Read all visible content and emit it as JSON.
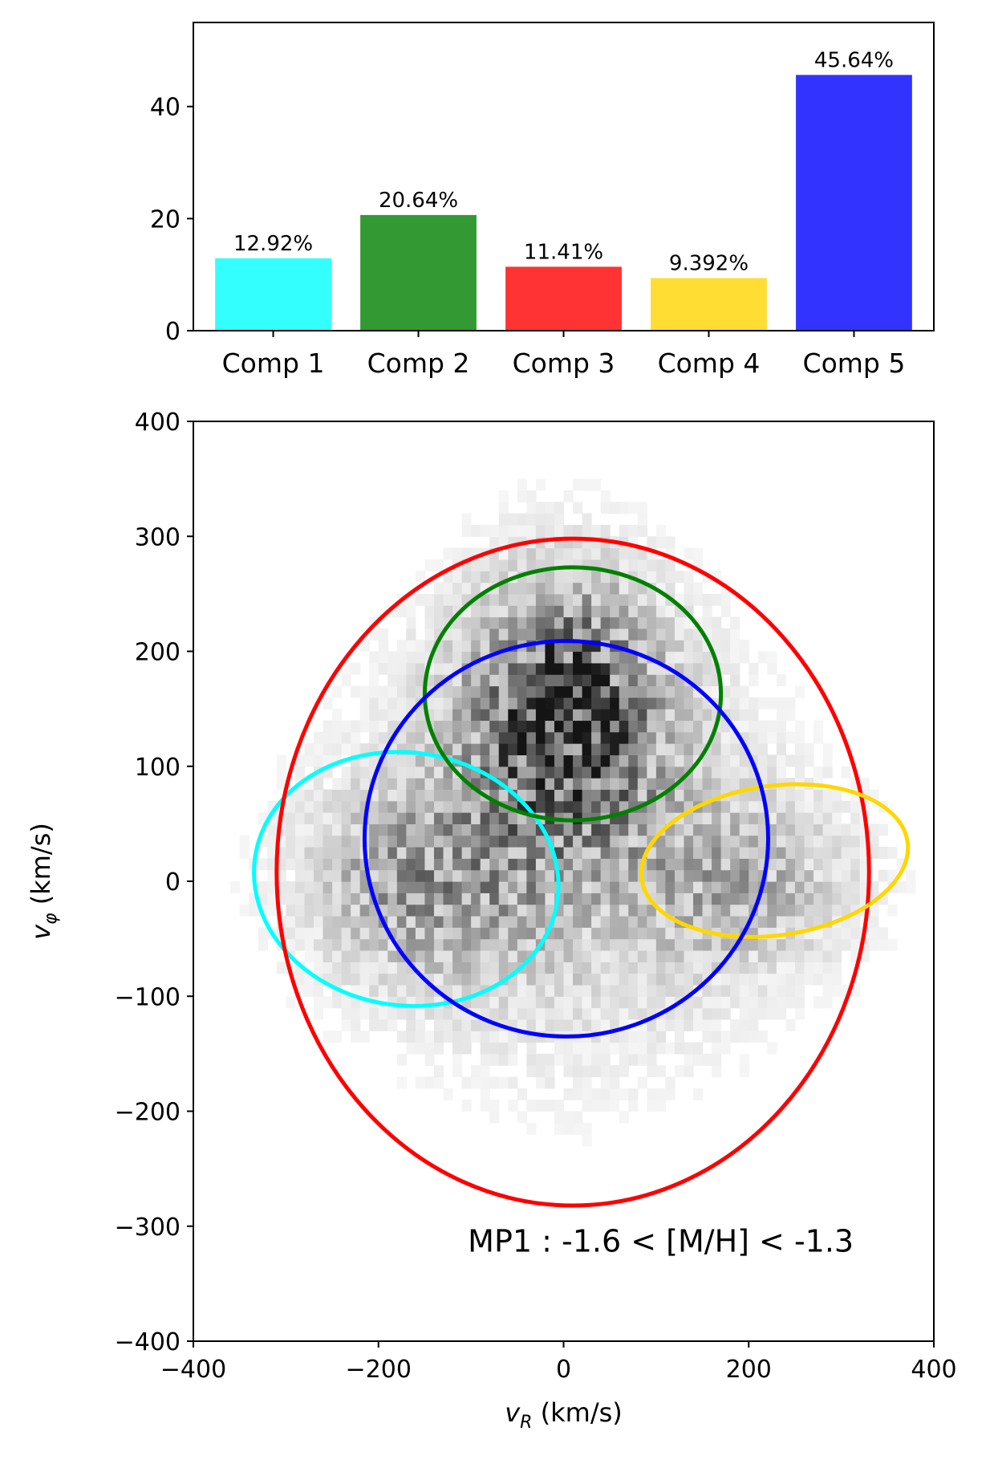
{
  "chart_data": [
    {
      "type": "bar",
      "categories": [
        "Comp 1",
        "Comp 2",
        "Comp 3",
        "Comp 4",
        "Comp 5"
      ],
      "values": [
        12.92,
        20.64,
        11.41,
        9.392,
        45.64
      ],
      "value_labels": [
        "12.92%",
        "20.64%",
        "11.41%",
        "9.392%",
        "45.64%"
      ],
      "colors": [
        "#33ffff",
        "#339933",
        "#ff3333",
        "#ffdd33",
        "#3333ff"
      ],
      "ylim": [
        0,
        55
      ],
      "yticks": [
        0,
        20,
        40
      ],
      "ytick_labels": [
        "0",
        "20",
        "40"
      ],
      "xlabel": "",
      "ylabel": "",
      "grid": false
    },
    {
      "type": "scatter",
      "subtype": "2d-histogram-with-gaussian-ellipses",
      "xlabel": "v_R (km/s)",
      "ylabel": "v_φ (km/s)",
      "xlim": [
        -400,
        400
      ],
      "ylim": [
        -400,
        400
      ],
      "xticks": [
        -400,
        -200,
        0,
        200,
        400
      ],
      "xtick_labels": [
        "−400",
        "−200",
        "0",
        "200",
        "400"
      ],
      "yticks": [
        -400,
        -300,
        -200,
        -100,
        0,
        100,
        200,
        300,
        400
      ],
      "ytick_labels": [
        "−400",
        "−300",
        "−200",
        "−100",
        "0",
        "100",
        "200",
        "300",
        "400"
      ],
      "annotation": "MP1 : -1.6 < [M/H] < -1.3",
      "grid": false,
      "colormap": "greys",
      "density_clusters": [
        {
          "cx": 0,
          "cy": 150,
          "sx": 70,
          "sy": 75,
          "weight": 1.0
        },
        {
          "cx": -160,
          "cy": 0,
          "sx": 80,
          "sy": 55,
          "weight": 0.45
        },
        {
          "cx": 200,
          "cy": 0,
          "sx": 80,
          "sy": 50,
          "weight": 0.35
        },
        {
          "cx": 0,
          "cy": 30,
          "sx": 140,
          "sy": 120,
          "weight": 0.35
        }
      ],
      "ellipses": [
        {
          "component": "Comp 1",
          "color": "#00ffff",
          "center": [
            -170,
            2
          ],
          "semi_axes": [
            165,
            110
          ],
          "angle_deg": -8
        },
        {
          "component": "Comp 2",
          "color": "#008000",
          "center": [
            10,
            163
          ],
          "semi_axes": [
            160,
            110
          ],
          "angle_deg": 0
        },
        {
          "component": "Comp 3",
          "color": "#ff0000",
          "center": [
            10,
            8
          ],
          "semi_axes": [
            320,
            290
          ],
          "angle_deg": 0
        },
        {
          "component": "Comp 4",
          "color": "#ffd700",
          "center": [
            228,
            18
          ],
          "semi_axes": [
            145,
            65
          ],
          "angle_deg": 8
        },
        {
          "component": "Comp 5",
          "color": "#0000ff",
          "center": [
            3,
            37
          ],
          "semi_axes": [
            218,
            172
          ],
          "angle_deg": 0
        }
      ]
    }
  ]
}
